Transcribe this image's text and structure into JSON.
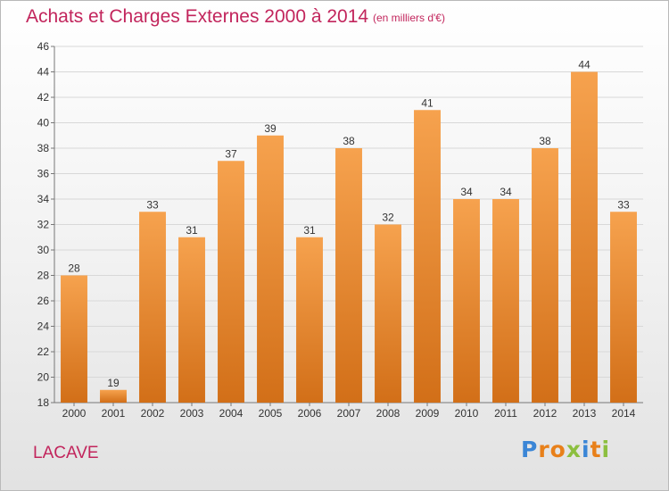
{
  "header": {
    "title": "Achats et Charges Externes 2000 à 2014",
    "subtitle": "(en milliers d'€)"
  },
  "footer": {
    "commune": "LACAVE",
    "logo_text": "Proxiti"
  },
  "colors": {
    "title": "#c2255c",
    "bar_light": "#f6a24e",
    "bar_dark": "#d26f18",
    "grid": "#d8d8d8"
  },
  "chart_data": {
    "type": "bar",
    "categories": [
      "2000",
      "2001",
      "2002",
      "2003",
      "2004",
      "2005",
      "2006",
      "2007",
      "2008",
      "2009",
      "2010",
      "2011",
      "2012",
      "2013",
      "2014"
    ],
    "values": [
      28,
      19,
      33,
      31,
      37,
      39,
      31,
      38,
      32,
      41,
      34,
      34,
      38,
      44,
      33
    ],
    "ylim": [
      18,
      46
    ],
    "yticks": [
      18,
      20,
      22,
      24,
      26,
      28,
      30,
      32,
      34,
      36,
      38,
      40,
      42,
      44,
      46
    ],
    "grid": true,
    "legend": "none"
  }
}
